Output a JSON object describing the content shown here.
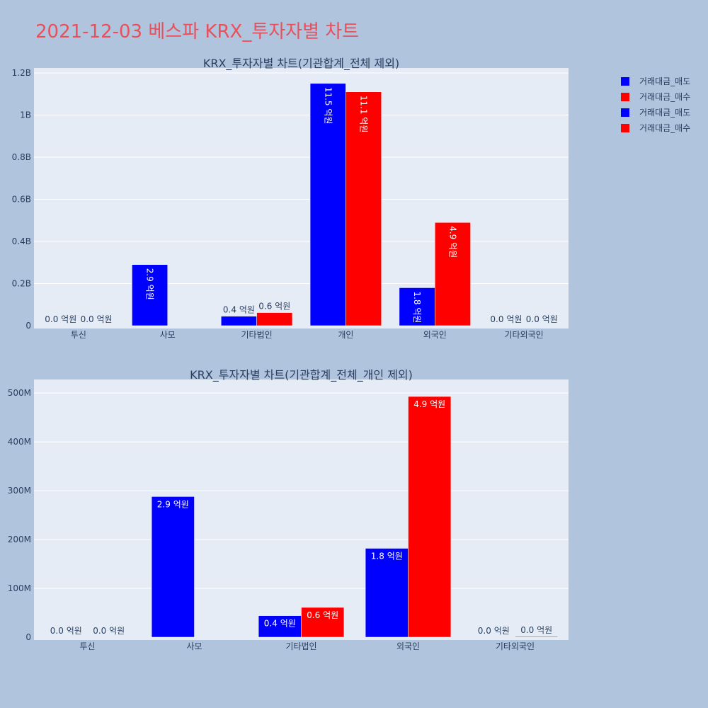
{
  "page_title": "2021-12-03 베스파 KRX_투자자별 차트",
  "colors": {
    "sell": "#0000ff",
    "buy": "#ff0000"
  },
  "legend": [
    "거래대금_매도",
    "거래대금_매수",
    "거래대금_매도",
    "거래대금_매수"
  ],
  "chart_data": [
    {
      "type": "bar",
      "title": "KRX_투자자별 차트(기관합계_전체 제외)",
      "categories": [
        "투신",
        "사모",
        "기타법인",
        "개인",
        "외국인",
        "기타외국인"
      ],
      "yticks": [
        0,
        200000000,
        400000000,
        600000000,
        800000000,
        1000000000,
        1200000000
      ],
      "ytick_labels": [
        "0",
        "0.2B",
        "0.4B",
        "0.6B",
        "0.8B",
        "1B",
        "1.2B"
      ],
      "ylim": [
        0,
        1210000000
      ],
      "label_orientation": "vertical",
      "series": [
        {
          "name": "거래대금_매도",
          "values": [
            0,
            290000000,
            45000000,
            1150000000,
            180000000,
            0
          ],
          "labels": [
            "0.0 억원",
            "2.9 억원",
            "0.4 억원",
            "11.5 억원",
            "1.8 억원",
            "0.0 억원"
          ]
        },
        {
          "name": "거래대금_매수",
          "values": [
            0,
            0,
            62000000,
            1110000000,
            490000000,
            0
          ],
          "labels": [
            "0.0 억원",
            "",
            "0.6 억원",
            "11.1 억원",
            "4.9 억원",
            "0.0 억원"
          ]
        }
      ]
    },
    {
      "type": "bar",
      "title": "KRX_투자자별 차트(기관합계_전체_개인 제외)",
      "categories": [
        "투신",
        "사모",
        "기타법인",
        "외국인",
        "기타외국인"
      ],
      "yticks": [
        0,
        100000000,
        200000000,
        300000000,
        400000000,
        500000000
      ],
      "ytick_labels": [
        "0",
        "100M",
        "200M",
        "300M",
        "400M",
        "500M"
      ],
      "ylim": [
        0,
        522000000
      ],
      "label_orientation": "horizontal",
      "series": [
        {
          "name": "거래대금_매도",
          "values": [
            0,
            288000000,
            44000000,
            182000000,
            0
          ],
          "labels": [
            "0.0 억원",
            "2.9 억원",
            "0.4 억원",
            "1.8 억원",
            "0.0 억원"
          ]
        },
        {
          "name": "거래대금_매수",
          "values": [
            0,
            0,
            61000000,
            493000000,
            1500000
          ],
          "labels": [
            "0.0 억원",
            "",
            "0.6 억원",
            "4.9 억원",
            "0.0 억원"
          ]
        }
      ]
    }
  ]
}
